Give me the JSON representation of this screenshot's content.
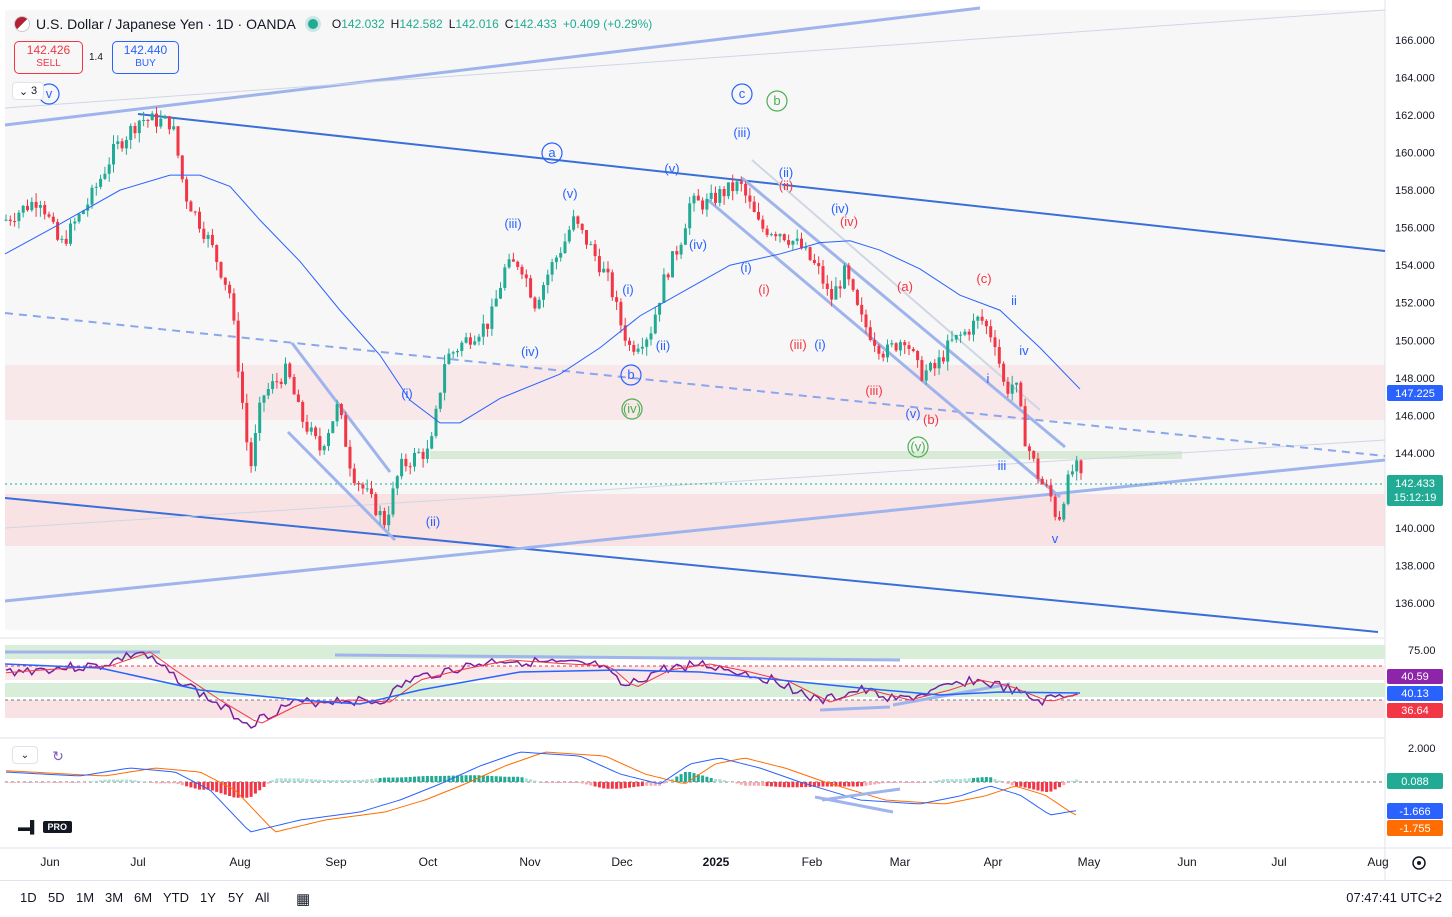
{
  "header": {
    "title": "U.S. Dollar / Japanese Yen · 1D · OANDA",
    "ohlc": {
      "o_label": "O",
      "o": "142.032",
      "h_label": "H",
      "h": "142.582",
      "l_label": "L",
      "l": "142.016",
      "c_label": "C",
      "c": "142.433",
      "change": "+0.409 (+0.29%)"
    }
  },
  "trade": {
    "sell_price": "142.426",
    "sell_label": "SELL",
    "spread": "1.4",
    "buy_price": "142.440",
    "buy_label": "BUY"
  },
  "collapse_label": "3",
  "price_axis": {
    "ticks": [
      "166.000",
      "164.000",
      "162.000",
      "160.000",
      "158.000",
      "156.000",
      "154.000",
      "152.000",
      "150.000",
      "148.000",
      "146.000",
      "144.000",
      "142.000",
      "140.000",
      "138.000",
      "136.000"
    ],
    "ma_label": "147.225",
    "current_price": "142.433",
    "countdown": "15:12:19"
  },
  "time_axis": [
    "Jun",
    "Jul",
    "Aug",
    "Sep",
    "Oct",
    "Nov",
    "Dec",
    "2025",
    "Feb",
    "Mar",
    "Apr",
    "May",
    "Jun",
    "Jul",
    "Aug"
  ],
  "rsi_axis": {
    "tick": "75.00",
    "labels": [
      "40.59",
      "40.13",
      "36.64"
    ]
  },
  "macd_axis": {
    "tick": "2.000",
    "labels": [
      "0.088",
      "-1.666",
      "-1.755"
    ]
  },
  "wave_labels": [
    "v",
    "a",
    "b",
    "c",
    "b",
    "(v)",
    "(iii)",
    "(v)",
    "(iii)",
    "(iv)",
    "(i)",
    "(ii)",
    "(iv)",
    "(i)",
    "(ii)",
    "(i)",
    "(ii)",
    "(iv)",
    "(v)",
    "(iv)",
    "(i)",
    "(ii)",
    "(iii)",
    "(i)",
    "(iii)",
    "(iv)",
    "(a)",
    "(b)",
    "(c)",
    "(v)",
    "i",
    "ii",
    "iii",
    "iv",
    "v",
    "a",
    "c",
    "(ii)",
    "(ii)"
  ],
  "bottom_bar": {
    "timeframes": [
      "1D",
      "5D",
      "1M",
      "3M",
      "6M",
      "YTD",
      "1Y",
      "5Y",
      "All"
    ],
    "clock": "07:47:41 UTC+2"
  },
  "brand": {
    "pro": "PRO"
  },
  "colors": {
    "up": "#22ab94",
    "down": "#f23645",
    "wave_blue": "#2962ff",
    "wave_red": "#f23645",
    "wave_green": "#4caf50",
    "channel": "#3a6fd8",
    "trend_light": "#9fb4ec",
    "rsi": "#7b1fa2",
    "macd": "#2962ff",
    "signal": "#ff6d00",
    "ma_price": "#2962ff"
  }
}
